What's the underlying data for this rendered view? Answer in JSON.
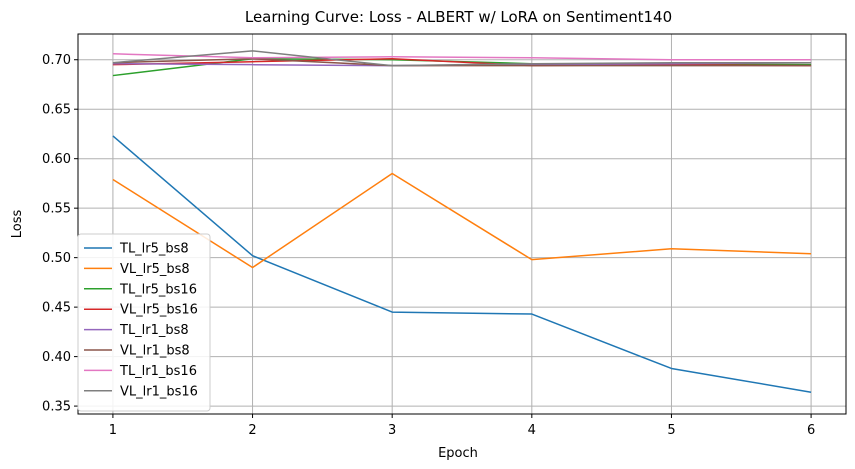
{
  "chart_data": {
    "type": "line",
    "title": "Learning Curve: Loss - ALBERT w/ LoRA on Sentiment140",
    "xlabel": "Epoch",
    "ylabel": "Loss",
    "x": [
      1,
      2,
      3,
      4,
      5,
      6
    ],
    "xticks": [
      "1",
      "2",
      "3",
      "4",
      "5",
      "6"
    ],
    "yticks": [
      "0.35",
      "0.40",
      "0.45",
      "0.50",
      "0.55",
      "0.60",
      "0.65",
      "0.70"
    ],
    "xlim": [
      0.75,
      6.25
    ],
    "ylim": [
      0.342,
      0.726
    ],
    "grid": true,
    "legend_position": "lower-left",
    "series": [
      {
        "name": "TL_lr5_bs8",
        "color": "#1f77b4",
        "values": [
          0.623,
          0.502,
          0.445,
          0.443,
          0.388,
          0.364
        ]
      },
      {
        "name": "VL_lr5_bs8",
        "color": "#ff7f0e",
        "values": [
          0.579,
          0.49,
          0.585,
          0.498,
          0.509,
          0.504
        ]
      },
      {
        "name": "TL_lr5_bs16",
        "color": "#2ca02c",
        "values": [
          0.684,
          0.701,
          0.7,
          0.696,
          0.696,
          0.695
        ]
      },
      {
        "name": "VL_lr5_bs16",
        "color": "#d62728",
        "values": [
          0.695,
          0.698,
          0.701,
          0.694,
          0.695,
          0.694
        ]
      },
      {
        "name": "TL_lr1_bs8",
        "color": "#9467bd",
        "values": [
          0.696,
          0.695,
          0.694,
          0.695,
          0.696,
          0.697
        ]
      },
      {
        "name": "VL_lr1_bs8",
        "color": "#8c564b",
        "values": [
          0.697,
          0.701,
          0.694,
          0.694,
          0.694,
          0.694
        ]
      },
      {
        "name": "TL_lr1_bs16",
        "color": "#e377c2",
        "values": [
          0.706,
          0.702,
          0.703,
          0.702,
          0.7,
          0.7
        ]
      },
      {
        "name": "VL_lr1_bs16",
        "color": "#7f7f7f",
        "values": [
          0.697,
          0.709,
          0.694,
          0.696,
          0.697,
          0.697
        ]
      }
    ]
  }
}
